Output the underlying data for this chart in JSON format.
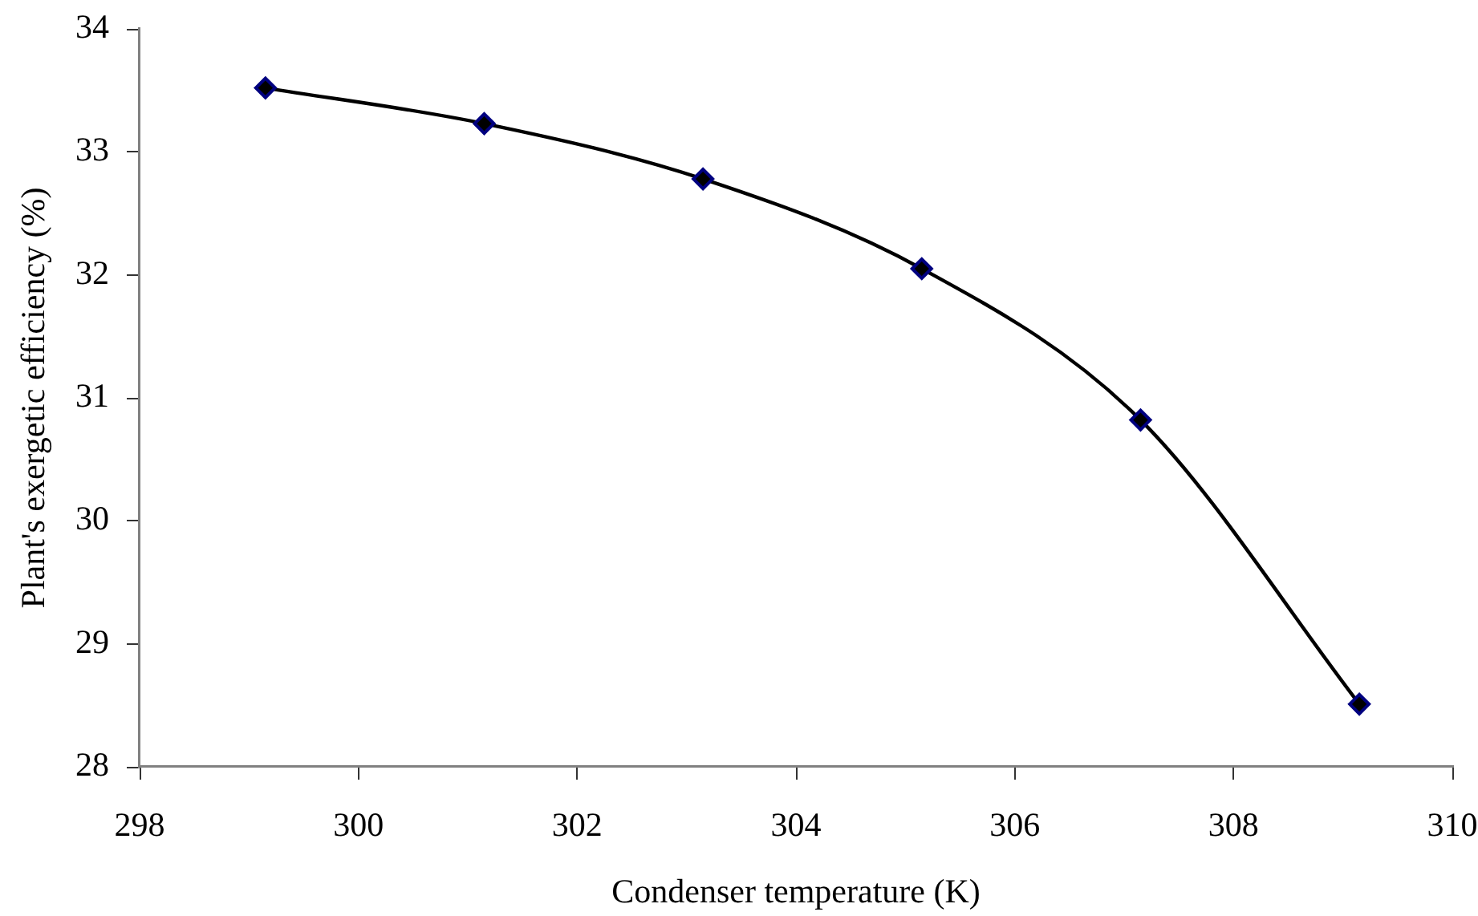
{
  "chart_data": {
    "type": "line",
    "xlabel": "Condenser temperature (K)",
    "ylabel": "Plant's exergetic efficiency (%)",
    "x": [
      299.15,
      301.15,
      303.15,
      305.15,
      307.15,
      309.15
    ],
    "series": [
      {
        "color": "#000000",
        "values": [
          33.52,
          33.23,
          32.78,
          32.05,
          30.82,
          28.51
        ]
      }
    ],
    "xlim": [
      298,
      310
    ],
    "xticks": [
      298,
      300,
      302,
      304,
      306,
      308,
      310
    ],
    "ylim": [
      28,
      34
    ],
    "yticks": [
      28,
      29,
      30,
      31,
      32,
      33,
      34
    ],
    "grid": false,
    "legend": false,
    "marker": "diamond",
    "line_style": "solid"
  }
}
